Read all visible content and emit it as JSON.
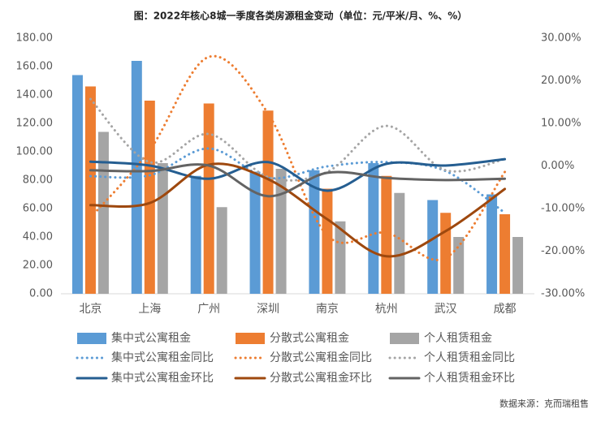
{
  "chart_data": {
    "type": "bar-line",
    "title": "图：2022年核心8城一季度各类房源租金变动（单位：元/平米/月、%、%）",
    "source": "数据来源：克而瑞租售",
    "categories": [
      "北京",
      "上海",
      "广州",
      "深圳",
      "南京",
      "杭州",
      "武汉",
      "成都"
    ],
    "ylim": [
      0,
      180
    ],
    "yticks": [
      {
        "value": 0,
        "label": "0.00"
      },
      {
        "value": 20,
        "label": "20.00"
      },
      {
        "value": 40,
        "label": "40.00"
      },
      {
        "value": 60,
        "label": "60.00"
      },
      {
        "value": 80,
        "label": "80.00"
      },
      {
        "value": 100,
        "label": "100.00"
      },
      {
        "value": 120,
        "label": "120.00"
      },
      {
        "value": 140,
        "label": "140.00"
      },
      {
        "value": 160,
        "label": "160.00"
      },
      {
        "value": 180,
        "label": "180.00"
      }
    ],
    "y2lim": [
      -30,
      30
    ],
    "y2ticks": [
      {
        "value": -30,
        "label": "-30.00%"
      },
      {
        "value": -20,
        "label": "-20.00%"
      },
      {
        "value": -10,
        "label": "-10.00%"
      },
      {
        "value": 0,
        "label": "0.00%"
      },
      {
        "value": 10,
        "label": "10.00%"
      },
      {
        "value": 20,
        "label": "20.00%"
      },
      {
        "value": 30,
        "label": "30.00%"
      }
    ],
    "series": [
      {
        "name": "集中式公寓租金",
        "type": "bar",
        "color": "#5b9bd5",
        "values": [
          154,
          164,
          83,
          86,
          87,
          92,
          66,
          70
        ]
      },
      {
        "name": "分散式公寓租金",
        "type": "bar",
        "color": "#ed7d31",
        "values": [
          146,
          136,
          134,
          129,
          74,
          83,
          57,
          56
        ]
      },
      {
        "name": "个人租赁租金",
        "type": "bar",
        "color": "#a5a5a5",
        "values": [
          114,
          92,
          61,
          88,
          51,
          71,
          40,
          40
        ]
      },
      {
        "name": "集中式公寓租金同比",
        "type": "line",
        "axis": "y2",
        "dotted": true,
        "color": "#5b9bd5",
        "values": [
          -2.4,
          -2.2,
          4.1,
          -2.8,
          -0.1,
          0.9,
          -1.2,
          -11
        ]
      },
      {
        "name": "分散式公寓租金同比",
        "type": "line",
        "axis": "y2",
        "dotted": true,
        "color": "#ed7d31",
        "values": [
          -12.1,
          3.7,
          25.6,
          12.3,
          -16.3,
          -15.7,
          -21.6,
          -1.4
        ]
      },
      {
        "name": "个人租赁租金同比",
        "type": "line",
        "axis": "y2",
        "dotted": true,
        "color": "#a5a5a5",
        "values": [
          15.7,
          0.9,
          7.5,
          -2.6,
          -1.4,
          9.4,
          -1,
          1.6
        ]
      },
      {
        "name": "集中式公寓租金环比",
        "type": "line",
        "axis": "y2",
        "dotted": false,
        "color": "#255e91",
        "values": [
          1.0,
          0.1,
          -3.0,
          0.9,
          -5.8,
          0.5,
          0.1,
          1.6
        ]
      },
      {
        "name": "分散式公寓租金环比",
        "type": "line",
        "axis": "y2",
        "dotted": false,
        "color": "#9e480e",
        "values": [
          -9.2,
          -8.7,
          0.3,
          -3.1,
          -12.5,
          -21.2,
          -15.3,
          -5.4
        ]
      },
      {
        "name": "个人租赁租金环比",
        "type": "line",
        "axis": "y2",
        "dotted": false,
        "color": "#636363",
        "values": [
          -1.0,
          -1.2,
          0.1,
          -7.1,
          -1.6,
          -2.8,
          -3.3,
          -3.0
        ]
      }
    ]
  }
}
